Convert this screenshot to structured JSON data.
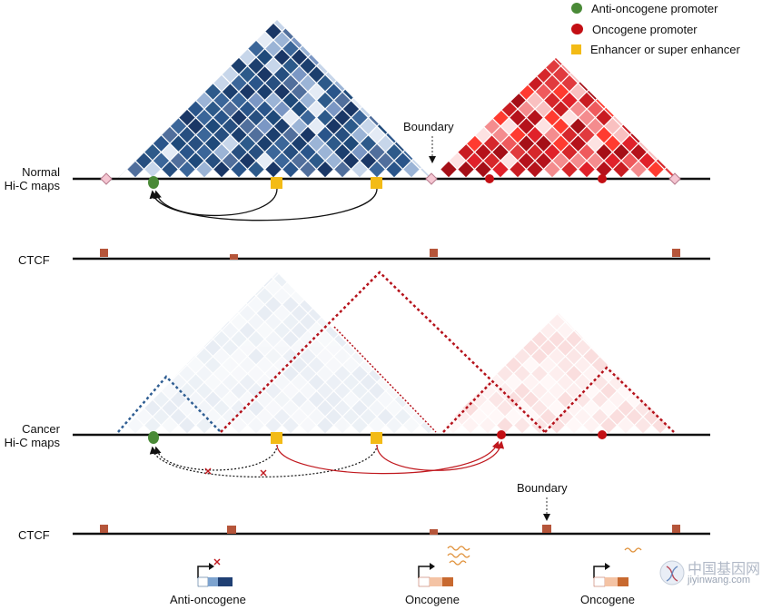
{
  "legend": {
    "anti_oncogene_promoter": "Anti-oncogene promoter",
    "oncogene_promoter": "Oncogene promoter",
    "enhancer": "Enhancer or super enhancer"
  },
  "normal": {
    "label_line1": "Normal",
    "label_line2": "Hi-C maps",
    "boundary_label": "Boundary"
  },
  "cancer": {
    "label_line1": "Cancer",
    "label_line2": "Hi-C maps",
    "boundary_label": "Boundary"
  },
  "ctcf_label": "CTCF",
  "genes": {
    "anti_oncogene": "Anti-oncogene",
    "oncogene_1": "Oncogene",
    "oncogene_2": "Oncogene"
  },
  "watermark": {
    "cn": "中国基因网",
    "url": "jiyinwang.com"
  },
  "colors": {
    "blue_dark": "#1f4a7a",
    "red_dark": "#b5121b",
    "green": "#4a8a37",
    "yellow": "#f3bb16",
    "ctcf": "#b5553a",
    "boundary_diamond": "#f5c6d2"
  }
}
